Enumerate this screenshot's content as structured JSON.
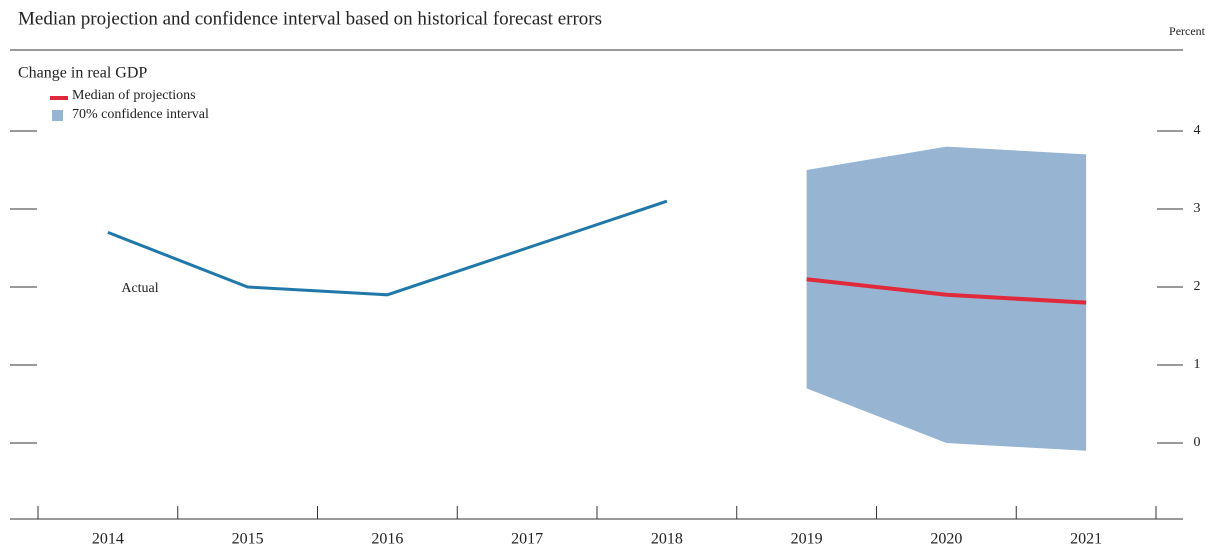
{
  "chart_data": {
    "type": "line",
    "title": "Median projection and confidence interval based on historical forecast errors",
    "y_unit": "Percent",
    "subtitle": "Change in real GDP",
    "categories": [
      "2014",
      "2015",
      "2016",
      "2017",
      "2018",
      "2019",
      "2020",
      "2021"
    ],
    "actual": {
      "label": "Actual",
      "color": "#1f78a9",
      "values": [
        2.7,
        2.0,
        1.9,
        2.5,
        3.1,
        null,
        null,
        null
      ]
    },
    "series": [
      {
        "name": "Median of projections",
        "color": "#e02a3c",
        "values": [
          null,
          null,
          null,
          null,
          null,
          2.1,
          1.9,
          1.8
        ]
      }
    ],
    "band": {
      "name": "70% confidence interval",
      "color": "#97b5d3",
      "lower": [
        null,
        null,
        null,
        null,
        null,
        0.7,
        0.0,
        -0.1
      ],
      "upper": [
        null,
        null,
        null,
        null,
        null,
        3.5,
        3.8,
        3.7
      ]
    },
    "ylim": [
      -1,
      5
    ],
    "yticks": [
      0,
      1,
      2,
      3,
      4
    ]
  }
}
